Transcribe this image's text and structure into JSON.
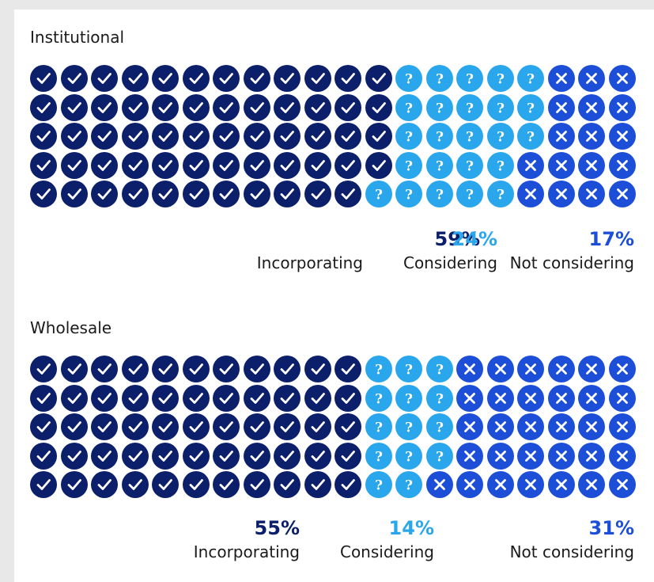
{
  "colors": {
    "incorporating": "#0b1f6b",
    "considering": "#2aa7ec",
    "not_considering": "#1c4ed8",
    "glyph": "#ffffff"
  },
  "icons": {
    "incorporating": "check-icon",
    "considering": "question-icon",
    "not_considering": "cross-icon"
  },
  "chart_data": [
    {
      "type": "waffle",
      "title": "Institutional",
      "rows": 5,
      "cols": 20,
      "categories": [
        "Incorporating",
        "Considering",
        "Not considering"
      ],
      "values": [
        59,
        24,
        17
      ],
      "value_labels": [
        "59%",
        "24%",
        "17%"
      ],
      "row_counts": [
        [
          12,
          5,
          3
        ],
        [
          12,
          5,
          3
        ],
        [
          12,
          5,
          3
        ],
        [
          12,
          4,
          4
        ],
        [
          11,
          5,
          4
        ]
      ]
    },
    {
      "type": "waffle",
      "title": "Wholesale",
      "rows": 5,
      "cols": 20,
      "categories": [
        "Incorporating",
        "Considering",
        "Not considering"
      ],
      "values": [
        55,
        14,
        31
      ],
      "value_labels": [
        "55%",
        "14%",
        "31%"
      ],
      "row_counts": [
        [
          11,
          3,
          6
        ],
        [
          11,
          3,
          6
        ],
        [
          11,
          3,
          6
        ],
        [
          11,
          3,
          6
        ],
        [
          11,
          2,
          7
        ]
      ]
    }
  ]
}
